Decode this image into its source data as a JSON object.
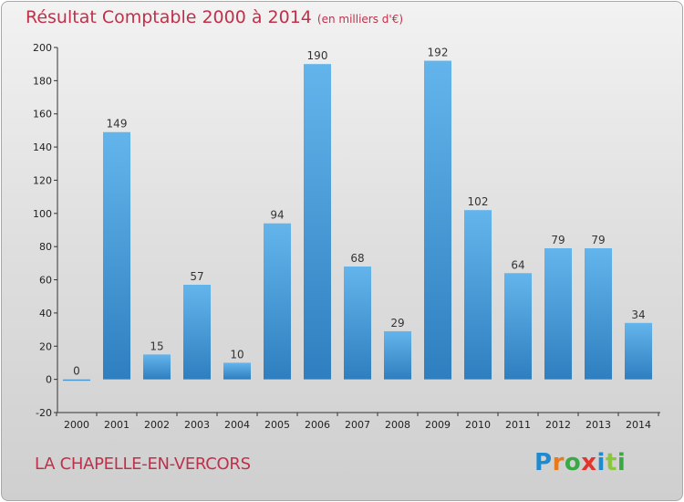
{
  "header": {
    "title": "Résultat Comptable 2000 à 2014",
    "subtitle": "(en milliers d'€)"
  },
  "commune_name": "LA CHAPELLE-EN-VERCORS",
  "logo": {
    "text": "Proxiti",
    "letters": [
      "P",
      "r",
      "o",
      "x",
      "i",
      "t",
      "i"
    ]
  },
  "colors": {
    "title": "#c0304a",
    "bar_light": "#64b4ec",
    "bar_dark": "#2f7fc0",
    "axis": "#333333",
    "grid": "#cccccc"
  },
  "chart_data": {
    "type": "bar",
    "title": "Résultat Comptable 2000 à 2014",
    "subtitle": "(en milliers d'€)",
    "xlabel": "",
    "ylabel": "",
    "categories": [
      "2000",
      "2001",
      "2002",
      "2003",
      "2004",
      "2005",
      "2006",
      "2007",
      "2008",
      "2009",
      "2010",
      "2011",
      "2012",
      "2013",
      "2014"
    ],
    "values": [
      0,
      149,
      15,
      57,
      10,
      94,
      190,
      68,
      29,
      192,
      102,
      64,
      79,
      79,
      34
    ],
    "data_labels": [
      "0",
      "149",
      "15",
      "57",
      "10",
      "94",
      "190",
      "68",
      "29",
      "192",
      "102",
      "64",
      "79",
      "79",
      "34"
    ],
    "ylim": [
      -20,
      200
    ],
    "yticks": [
      -20,
      0,
      20,
      40,
      60,
      80,
      100,
      120,
      140,
      160,
      180,
      200
    ],
    "grid": false,
    "legend": "none"
  }
}
